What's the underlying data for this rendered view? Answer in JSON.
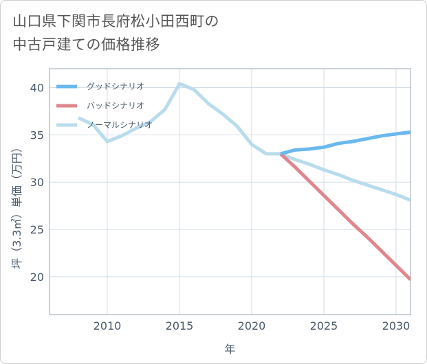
{
  "title_lines": [
    "山口県下関市長府松小田西町の",
    "中古戸建ての価格推移"
  ],
  "chart_data": {
    "type": "line",
    "title": "山口県下関市長府松小田西町の中古戸建ての価格推移",
    "xlabel": "年",
    "ylabel": "坪（3.3㎡）単価（万円）",
    "xlim": [
      2006,
      2031
    ],
    "ylim": [
      16,
      42
    ],
    "xticks": [
      2010,
      2015,
      2020,
      2025,
      2030
    ],
    "yticks": [
      20,
      25,
      30,
      35,
      40
    ],
    "legend_position": "top-left",
    "series": [
      {
        "name": "グッドシナリオ",
        "color": "#6ab8ee",
        "x": [
          2022,
          2023,
          2024,
          2025,
          2026,
          2027,
          2028,
          2029,
          2030,
          2031
        ],
        "y": [
          33.0,
          33.4,
          33.5,
          33.7,
          34.1,
          34.3,
          34.6,
          34.9,
          35.1,
          35.3
        ]
      },
      {
        "name": "バッドシナリオ",
        "color": "#e0868e",
        "x": [
          2022,
          2023,
          2024,
          2025,
          2026,
          2027,
          2028,
          2029,
          2030,
          2031
        ],
        "y": [
          33.0,
          31.6,
          30.1,
          28.6,
          27.1,
          25.6,
          24.2,
          22.7,
          21.2,
          19.7
        ]
      },
      {
        "name": "ノーマルシナリオ",
        "color": "#b9dcec",
        "x": [
          2008,
          2009,
          2010,
          2011,
          2012,
          2013,
          2014,
          2015,
          2016,
          2017,
          2018,
          2019,
          2020,
          2021,
          2022,
          2023,
          2024,
          2025,
          2026,
          2027,
          2028,
          2029,
          2030,
          2031
        ],
        "y": [
          36.8,
          36.1,
          34.3,
          34.9,
          35.7,
          36.4,
          37.7,
          40.4,
          39.8,
          38.3,
          37.2,
          35.9,
          34.0,
          33.0,
          33.0,
          32.4,
          31.9,
          31.3,
          30.8,
          30.2,
          29.7,
          29.2,
          28.7,
          28.1
        ]
      }
    ]
  }
}
